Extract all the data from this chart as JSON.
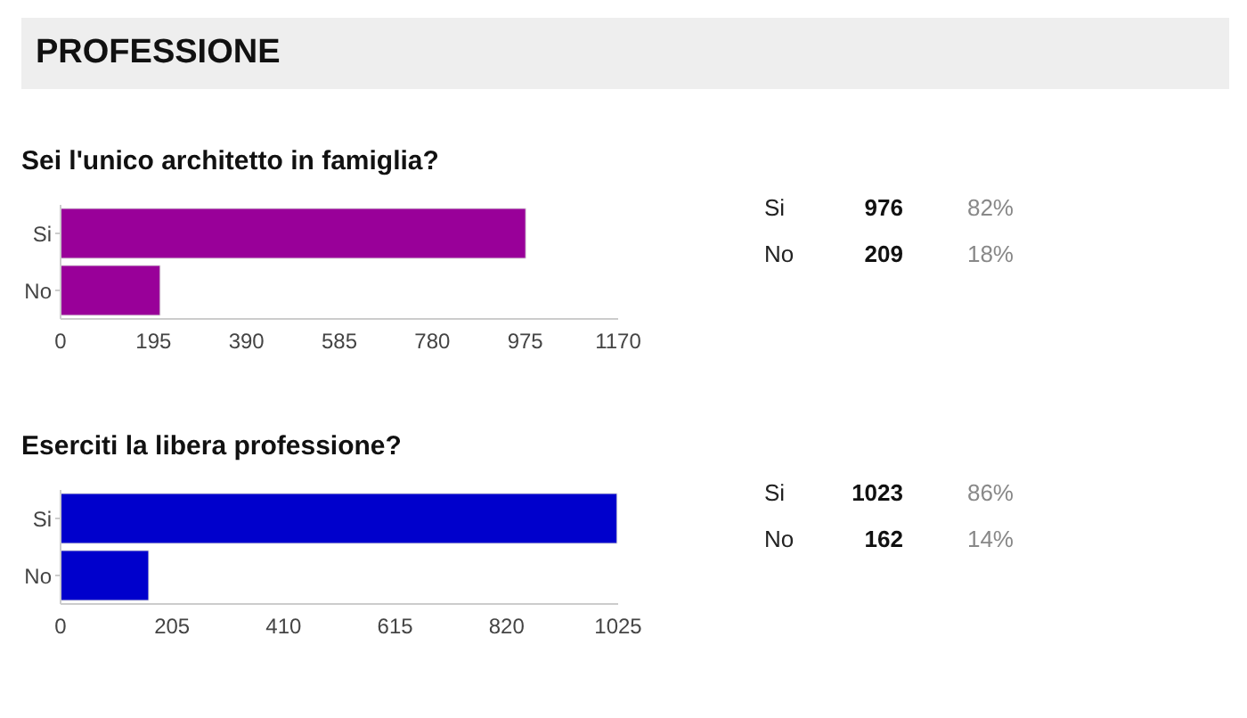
{
  "chart_data": [
    {
      "type": "bar",
      "orientation": "horizontal",
      "title": "PROFESSIONE",
      "subtitle": "Sei l'unico architetto in famiglia?",
      "categories": [
        "Si",
        "No"
      ],
      "values": [
        976,
        209
      ],
      "color": "#990099",
      "xlim": [
        0,
        1170
      ],
      "xticks": [
        0,
        195,
        390,
        585,
        780,
        975,
        1170
      ],
      "grid": false,
      "legend": false,
      "data_labels": true,
      "annotations": [
        "82%",
        "18%"
      ]
    },
    {
      "type": "bar",
      "orientation": "horizontal",
      "title": "Eserciti la libera professione?",
      "categories": [
        "Si",
        "No"
      ],
      "values": [
        1023,
        162
      ],
      "color": "#0000cc",
      "xlim": [
        0,
        1025
      ],
      "xticks": [
        0,
        205,
        410,
        615,
        820,
        1025
      ],
      "grid": false,
      "legend": false,
      "data_labels": true,
      "annotations": [
        "86%",
        "14%"
      ]
    }
  ]
}
